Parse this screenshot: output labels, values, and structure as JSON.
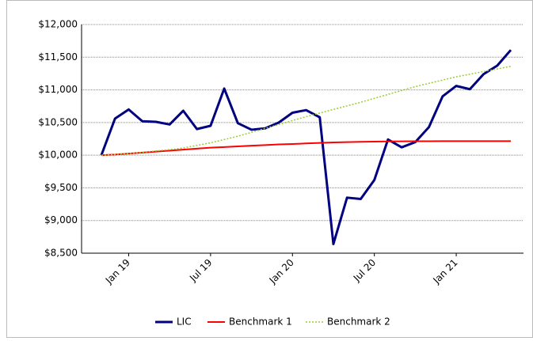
{
  "chart_data": {
    "type": "line",
    "categories": [
      null,
      null,
      "Jan 19",
      null,
      null,
      null,
      null,
      null,
      "Jul 19",
      null,
      null,
      null,
      null,
      null,
      "Jan 20",
      null,
      null,
      null,
      null,
      null,
      "Jul 20",
      null,
      null,
      null,
      null,
      null,
      "Jan 21",
      null,
      null,
      null,
      null
    ],
    "series": [
      {
        "name": "LIC",
        "color": "#000080",
        "style": "solid",
        "width": 3,
        "values": [
          10000,
          10560,
          10700,
          10520,
          10510,
          10470,
          10680,
          10400,
          10450,
          11020,
          10490,
          10390,
          10410,
          10500,
          10650,
          10690,
          10580,
          8640,
          9350,
          9330,
          9620,
          10240,
          10120,
          10200,
          10430,
          10900,
          11060,
          11010,
          11240,
          11370,
          11610
        ]
      },
      {
        "name": "Benchmark 1",
        "color": "#ff0000",
        "style": "solid",
        "width": 2,
        "values": [
          10000,
          10010,
          10025,
          10040,
          10055,
          10070,
          10085,
          10100,
          10115,
          10125,
          10135,
          10145,
          10155,
          10165,
          10172,
          10180,
          10188,
          10195,
          10200,
          10205,
          10208,
          10210,
          10212,
          10213,
          10214,
          10215,
          10215,
          10215,
          10215,
          10215,
          10215
        ]
      },
      {
        "name": "Benchmark 2",
        "color": "#99cc33",
        "style": "dotted",
        "width": 1.5,
        "values": [
          10000,
          10010,
          10025,
          10045,
          10065,
          10085,
          10110,
          10150,
          10190,
          10240,
          10290,
          10350,
          10410,
          10470,
          10530,
          10590,
          10645,
          10700,
          10755,
          10810,
          10870,
          10930,
          10990,
          11050,
          11100,
          11150,
          11200,
          11240,
          11280,
          11320,
          11360
        ]
      }
    ],
    "ylim": [
      8500,
      12000
    ],
    "yticks": [
      {
        "value": 8500,
        "label": "$8,500"
      },
      {
        "value": 9000,
        "label": "$9,000"
      },
      {
        "value": 9500,
        "label": "$9,500"
      },
      {
        "value": 10000,
        "label": "$10,000"
      },
      {
        "value": 10500,
        "label": "$10,500"
      },
      {
        "value": 11000,
        "label": "$11,000"
      },
      {
        "value": 11500,
        "label": "$11,500"
      },
      {
        "value": 12000,
        "label": "$12,000"
      }
    ],
    "grid": true,
    "legend": "bottom"
  }
}
